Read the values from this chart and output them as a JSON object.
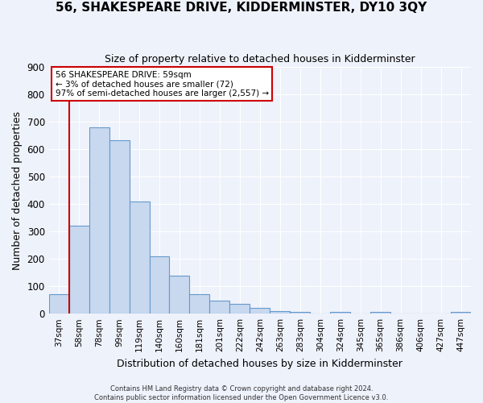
{
  "title": "56, SHAKESPEARE DRIVE, KIDDERMINSTER, DY10 3QY",
  "subtitle": "Size of property relative to detached houses in Kidderminster",
  "xlabel": "Distribution of detached houses by size in Kidderminster",
  "ylabel": "Number of detached properties",
  "bar_color": "#c8d8ef",
  "bar_edge_color": "#6699cc",
  "background_color": "#eef2fb",
  "grid_color": "#ffffff",
  "categories": [
    "37sqm",
    "58sqm",
    "78sqm",
    "99sqm",
    "119sqm",
    "140sqm",
    "160sqm",
    "181sqm",
    "201sqm",
    "222sqm",
    "242sqm",
    "263sqm",
    "283sqm",
    "304sqm",
    "324sqm",
    "345sqm",
    "365sqm",
    "386sqm",
    "406sqm",
    "427sqm",
    "447sqm"
  ],
  "values": [
    72,
    320,
    680,
    633,
    410,
    210,
    140,
    70,
    48,
    35,
    22,
    10,
    7,
    0,
    5,
    0,
    5,
    0,
    0,
    0,
    7
  ],
  "ylim": [
    0,
    900
  ],
  "yticks": [
    0,
    100,
    200,
    300,
    400,
    500,
    600,
    700,
    800,
    900
  ],
  "annotation_line1": "56 SHAKESPEARE DRIVE: 59sqm",
  "annotation_line2": "← 3% of detached houses are smaller (72)",
  "annotation_line3": "97% of semi-detached houses are larger (2,557) →",
  "vline_color": "#cc0000",
  "box_edge_color": "#cc0000",
  "footer1": "Contains HM Land Registry data © Crown copyright and database right 2024.",
  "footer2": "Contains public sector information licensed under the Open Government Licence v3.0."
}
